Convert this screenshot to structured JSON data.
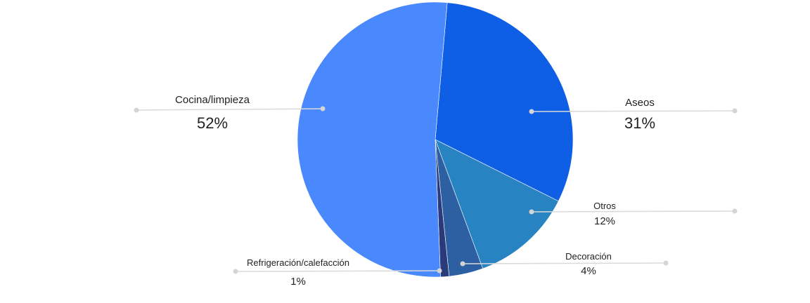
{
  "chart_data": {
    "type": "pie",
    "slices": [
      {
        "label": "Aseos",
        "value": 31,
        "display": "31%",
        "color": "#0f5ee6"
      },
      {
        "label": "Otros",
        "value": 12,
        "display": "12%",
        "color": "#2783c1"
      },
      {
        "label": "Decoración",
        "value": 4,
        "display": "4%",
        "color": "#2d5fa3"
      },
      {
        "label": "Refrigeración/calefacción",
        "value": 1,
        "display": "1%",
        "color": "#2b3a7a"
      },
      {
        "label": "Cocina/limpieza",
        "value": 52,
        "display": "52%",
        "color": "#4a88fd"
      }
    ],
    "start_angle_deg": 5,
    "direction": "clockwise"
  }
}
